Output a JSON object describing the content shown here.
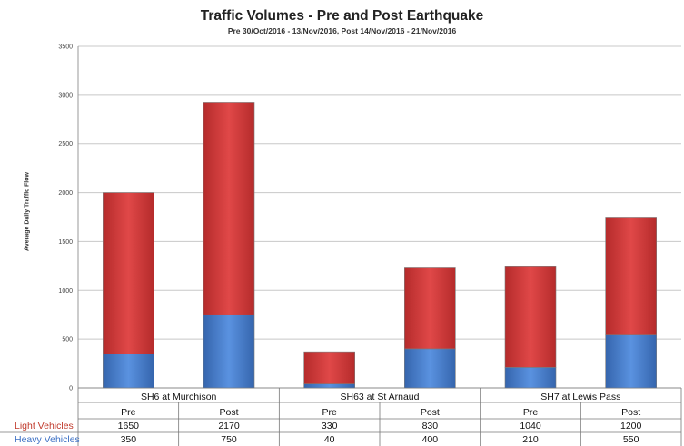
{
  "chart_data": {
    "type": "bar",
    "stacked": true,
    "title": "Traffic Volumes - Pre and Post Earthquake",
    "subtitle": "Pre 30/Oct/2016 - 13/Nov/2016, Post 14/Nov/2016 - 21/Nov/2016",
    "ylabel": "Average Daily Traffic Flow",
    "ylim": [
      0,
      3500
    ],
    "yticks": [
      0,
      500,
      1000,
      1500,
      2000,
      2500,
      3000,
      3500
    ],
    "grid": true,
    "groups": [
      {
        "label": "SH6 at Murchison",
        "categories": [
          "Pre",
          "Post"
        ]
      },
      {
        "label": "SH63 at St Arnaud",
        "categories": [
          "Pre",
          "Post"
        ]
      },
      {
        "label": "SH7 at Lewis Pass",
        "categories": [
          "Pre",
          "Post"
        ]
      }
    ],
    "series": [
      {
        "name": "Heavy Vehicles",
        "color": "#4a7fcf",
        "values": [
          350,
          750,
          40,
          400,
          210,
          550
        ]
      },
      {
        "name": "Light Vehicles",
        "color": "#d23b3b",
        "values": [
          1650,
          2170,
          330,
          830,
          1040,
          1200
        ]
      }
    ],
    "table_rows": [
      {
        "label": "Light Vehicles",
        "label_color": "#c0392b",
        "values": [
          "1650",
          "2170",
          "330",
          "830",
          "1040",
          "1200"
        ]
      },
      {
        "label": "Heavy Vehicles",
        "label_color": "#3a6fc4",
        "values": [
          "350",
          "750",
          "40",
          "400",
          "210",
          "550"
        ]
      }
    ]
  }
}
